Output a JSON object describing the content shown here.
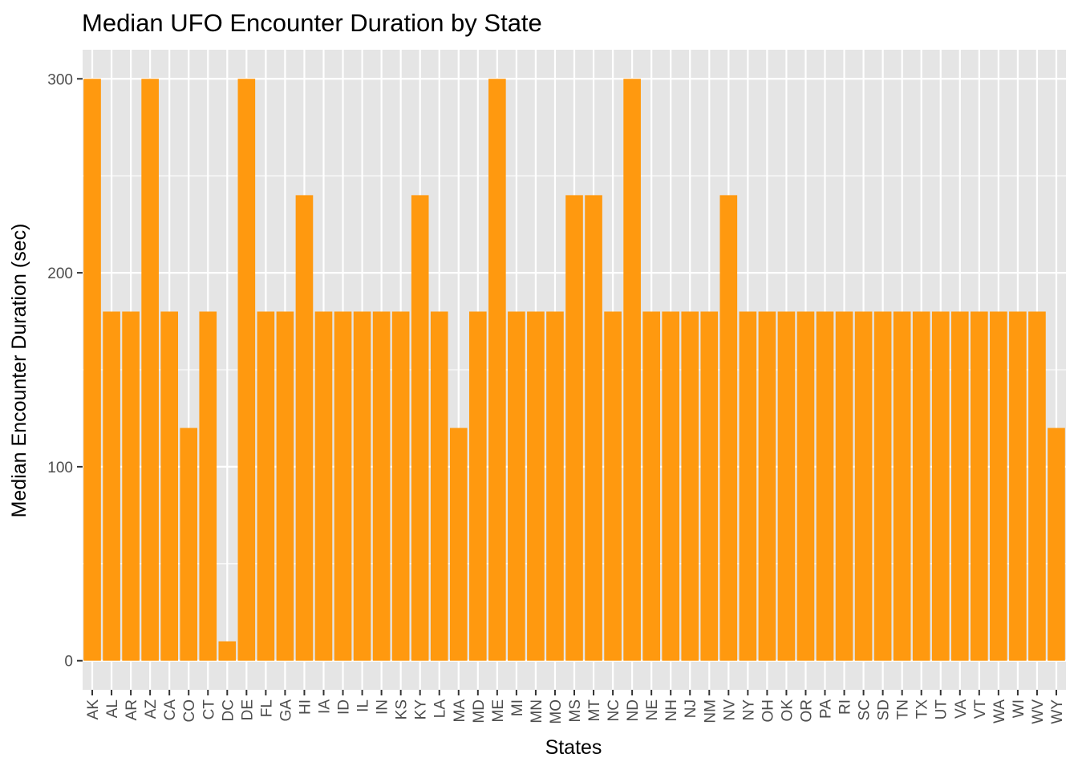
{
  "chart_data": {
    "type": "bar",
    "title": "Median UFO Encounter Duration by State",
    "xlabel": "States",
    "ylabel": "Median Encounter Duration (sec)",
    "categories": [
      "AK",
      "AL",
      "AR",
      "AZ",
      "CA",
      "CO",
      "CT",
      "DC",
      "DE",
      "FL",
      "GA",
      "HI",
      "IA",
      "ID",
      "IL",
      "IN",
      "KS",
      "KY",
      "LA",
      "MA",
      "MD",
      "ME",
      "MI",
      "MN",
      "MO",
      "MS",
      "MT",
      "NC",
      "ND",
      "NE",
      "NH",
      "NJ",
      "NM",
      "NV",
      "NY",
      "OH",
      "OK",
      "OR",
      "PA",
      "RI",
      "SC",
      "SD",
      "TN",
      "TX",
      "UT",
      "VA",
      "VT",
      "WA",
      "WI",
      "WV",
      "WY"
    ],
    "values": [
      300,
      180,
      180,
      300,
      180,
      120,
      180,
      10,
      300,
      180,
      180,
      240,
      180,
      180,
      180,
      180,
      180,
      240,
      180,
      120,
      180,
      300,
      180,
      180,
      180,
      240,
      240,
      180,
      300,
      180,
      180,
      180,
      180,
      240,
      180,
      180,
      180,
      180,
      180,
      180,
      180,
      180,
      180,
      180,
      180,
      180,
      180,
      180,
      180,
      180,
      120
    ],
    "yticks": [
      0,
      100,
      200,
      300
    ],
    "ylim": [
      -15,
      315
    ],
    "grid": true,
    "colors": {
      "bar": "#FF990F",
      "panel": "#E5E5E5",
      "grid_major": "#FFFFFF",
      "axis_text": "#4D4D4D",
      "tick": "#333333"
    }
  }
}
